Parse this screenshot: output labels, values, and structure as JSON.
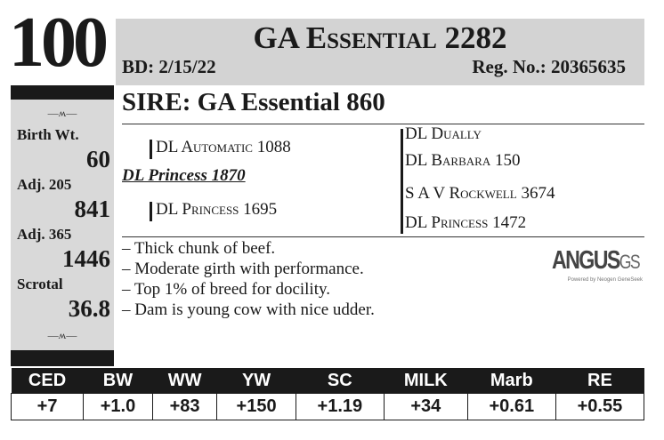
{
  "lot_number": "100",
  "header": {
    "title": "GA Essential 2282",
    "birth_date": "BD: 2/15/22",
    "reg_no": "Reg. No.: 20365635"
  },
  "sidebar": {
    "ornament": "—ʍ—",
    "stats": [
      {
        "label": "Birth Wt.",
        "value": "60"
      },
      {
        "label": "Adj. 205",
        "value": "841"
      },
      {
        "label": "Adj. 365",
        "value": "1446"
      },
      {
        "label": "Scrotal",
        "value": "36.8"
      }
    ]
  },
  "sire": "SIRE: GA Essential 860",
  "pedigree": {
    "dam": "DL Princess 1870",
    "dam_sire": "DL Automatic 1088",
    "dam_dam": "DL Princess 1695",
    "far": [
      "DL Dually",
      "DL Barbara 150",
      "S A V Rockwell 3674",
      "DL Princess 1472"
    ]
  },
  "notes": [
    "– Thick chunk of beef.",
    "– Moderate girth with performance.",
    "– Top 1% of breed for docility.",
    "– Dam is young cow with nice udder."
  ],
  "logo": {
    "main": "ANGUS",
    "suffix": "GS",
    "sub": "Powered by Neogen GeneSeek"
  },
  "epd": {
    "headers": [
      "CED",
      "BW",
      "WW",
      "YW",
      "SC",
      "MILK",
      "Marb",
      "RE"
    ],
    "values": [
      "+7",
      "+1.0",
      "+83",
      "+150",
      "+1.19",
      "+34",
      "+0.61",
      "+0.55"
    ]
  }
}
